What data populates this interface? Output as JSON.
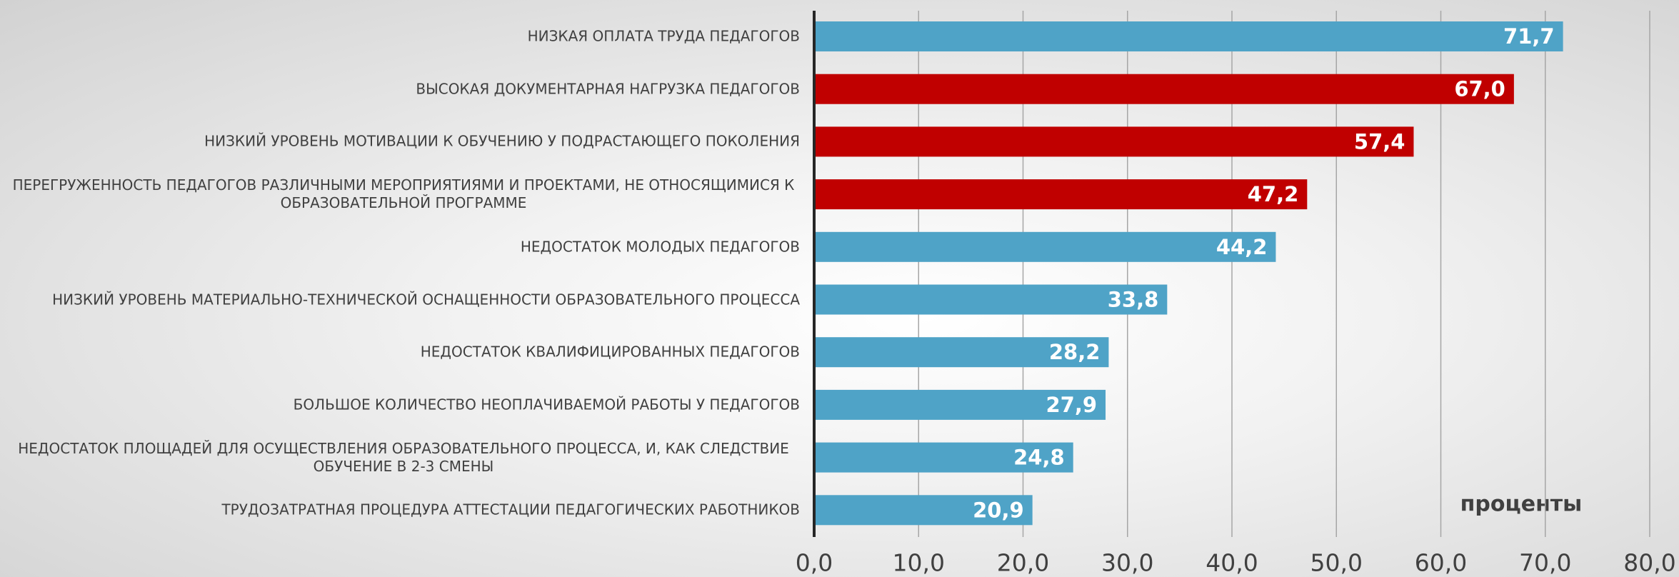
{
  "chart_data": {
    "type": "barh",
    "categories": [
      "НИЗКАЯ ОПЛАТА ТРУДА ПЕДАГОГОВ",
      "ВЫСОКАЯ ДОКУМЕНТАРНАЯ НАГРУЗКА ПЕДАГОГОВ",
      "НИЗКИЙ УРОВЕНЬ МОТИВАЦИИ К ОБУЧЕНИЮ У ПОДРАСТАЮЩЕГО ПОКОЛЕНИЯ",
      "ПЕРЕГРУЖЕННОСТЬ ПЕДАГОГОВ РАЗЛИЧНЫМИ МЕРОПРИЯТИЯМИ И ПРОЕКТАМИ, НЕ ОТНОСЯЩИМИСЯ К ОБРАЗОВАТЕЛЬНОЙ ПРОГРАММЕ",
      "НЕДОСТАТОК МОЛОДЫХ ПЕДАГОГОВ",
      "НИЗКИЙ УРОВЕНЬ МАТЕРИАЛЬНО-ТЕХНИЧЕСКОЙ ОСНАЩЕННОСТИ ОБРАЗОВАТЕЛЬНОГО ПРОЦЕССА",
      "НЕДОСТАТОК КВАЛИФИЦИРОВАННЫХ ПЕДАГОГОВ",
      "БОЛЬШОЕ КОЛИЧЕСТВО НЕОПЛАЧИВАЕМОЙ РАБОТЫ У ПЕДАГОГОВ",
      "НЕДОСТАТОК ПЛОЩАДЕЙ ДЛЯ ОСУЩЕСТВЛЕНИЯ ОБРАЗОВАТЕЛЬНОГО ПРОЦЕССА, И, КАК СЛЕДСТВИЕ ОБУЧЕНИЕ В 2-3 СМЕНЫ",
      "ТРУДОЗАТРАТНАЯ ПРОЦЕДУРА АТТЕСТАЦИИ ПЕДАГОГИЧЕСКИХ РАБОТНИКОВ"
    ],
    "values": [
      71.7,
      67.0,
      57.4,
      47.2,
      44.2,
      33.8,
      28.2,
      27.9,
      24.8,
      20.9
    ],
    "value_labels": [
      "71,7",
      "67,0",
      "57,4",
      "47,2",
      "44,2",
      "33,8",
      "28,2",
      "27,9",
      "24,8",
      "20,9"
    ],
    "colors": [
      "#4fa3c7",
      "#c00000",
      "#c00000",
      "#c00000",
      "#4fa3c7",
      "#4fa3c7",
      "#4fa3c7",
      "#4fa3c7",
      "#4fa3c7",
      "#4fa3c7"
    ],
    "xlabel": "проценты",
    "xlim": [
      0,
      80
    ],
    "xticks": [
      {
        "value": 0,
        "label": "0,0"
      },
      {
        "value": 10,
        "label": "10,0"
      },
      {
        "value": 20,
        "label": "20,0"
      },
      {
        "value": 30,
        "label": "30,0"
      },
      {
        "value": 40,
        "label": "40,0"
      },
      {
        "value": 50,
        "label": "50,0"
      },
      {
        "value": 60,
        "label": "60,0"
      },
      {
        "value": 70,
        "label": "70,0"
      },
      {
        "value": 80,
        "label": "80,0"
      }
    ],
    "grid": true
  }
}
